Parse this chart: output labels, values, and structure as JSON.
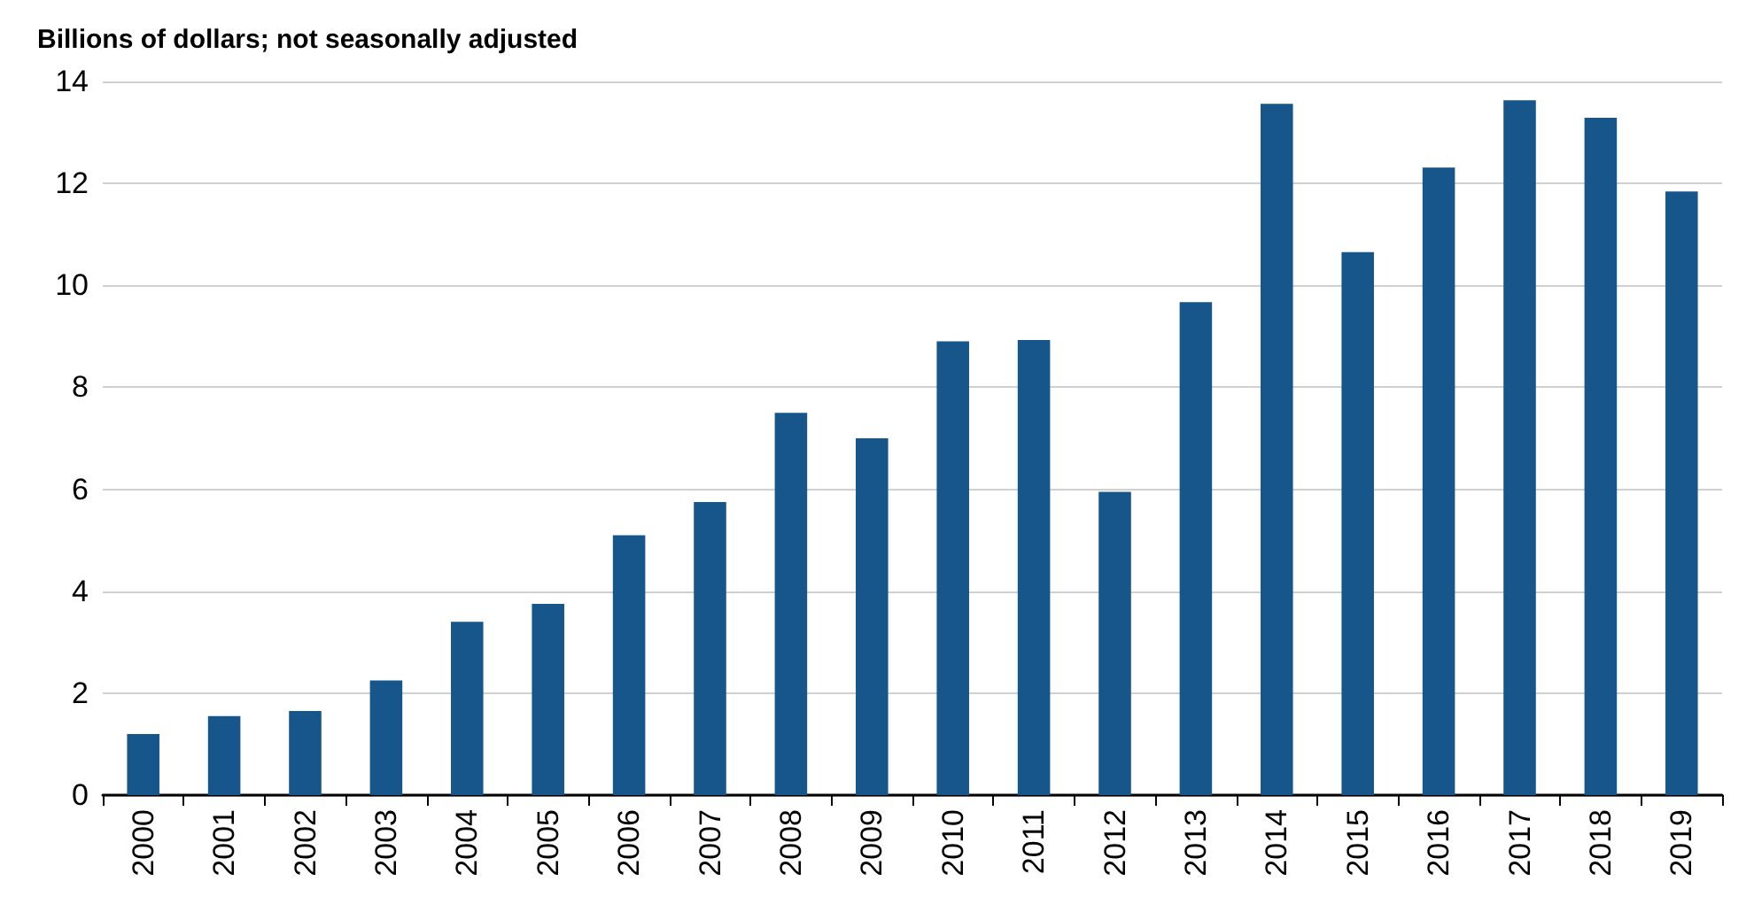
{
  "chart_data": {
    "type": "bar",
    "title": "Billions of dollars; not seasonally adjusted",
    "categories": [
      "2000",
      "2001",
      "2002",
      "2003",
      "2004",
      "2005",
      "2006",
      "2007",
      "2008",
      "2009",
      "2010",
      "2011",
      "2012",
      "2013",
      "2014",
      "2015",
      "2016",
      "2017",
      "2018",
      "2019"
    ],
    "values": [
      1.2,
      1.55,
      1.65,
      2.25,
      3.4,
      3.75,
      5.1,
      5.75,
      7.5,
      7.0,
      8.9,
      8.93,
      5.95,
      9.67,
      13.56,
      10.65,
      12.31,
      13.63,
      13.29,
      11.84
    ],
    "color": "#17568a",
    "ylim": [
      0,
      14
    ],
    "yticks": [
      0,
      2,
      4,
      6,
      8,
      10,
      12,
      14
    ],
    "grid": "y"
  }
}
